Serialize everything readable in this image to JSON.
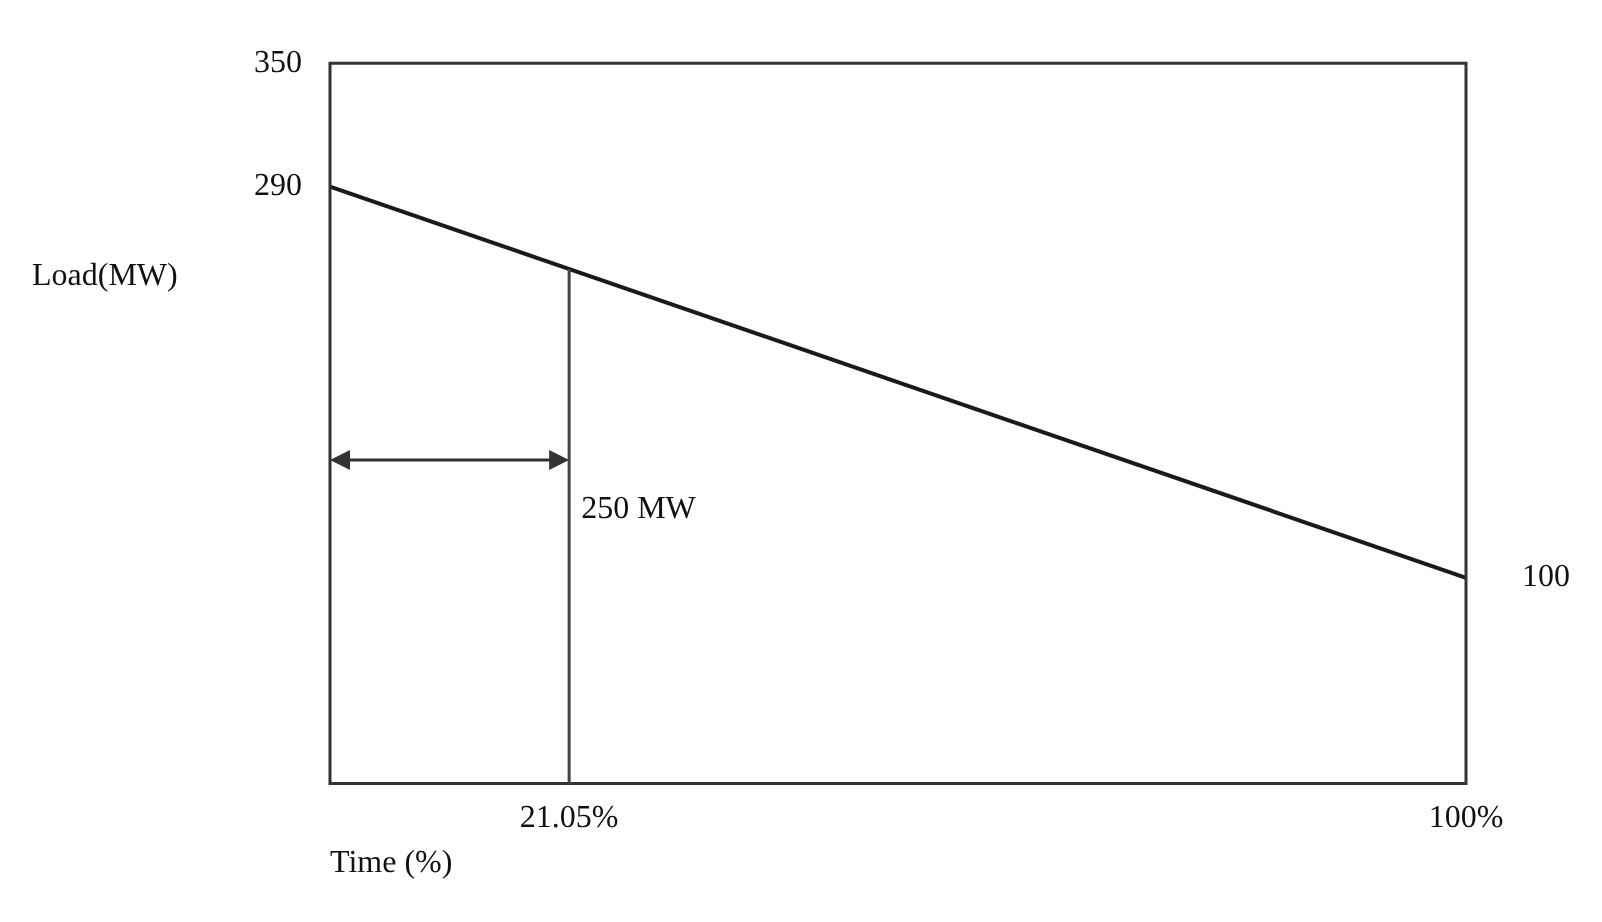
{
  "chart_data": {
    "type": "line",
    "xlabel": "Time (%)",
    "ylabel": "Load(MW)",
    "xlim": [
      0,
      100
    ],
    "xticks": [
      {
        "value": 21.05,
        "label": "21.05%"
      },
      {
        "value": 100,
        "label": "100%"
      }
    ],
    "ylim": [
      0,
      350
    ],
    "yticks": [
      {
        "value": 290,
        "label": "290"
      },
      {
        "value": 350,
        "label": "350"
      }
    ],
    "series": [
      {
        "color": "#1a1a1a",
        "x": [
          0,
          100
        ],
        "values": [
          290,
          100
        ]
      }
    ],
    "ref_lines": [
      {
        "axis": "x",
        "value": 21.05,
        "label": "250 MW",
        "color": "#444444"
      }
    ],
    "annotations": [
      {
        "text": "100",
        "x": 100,
        "y": 100
      }
    ],
    "grid": false,
    "legend": false,
    "marker": "none",
    "line_style": "solid"
  }
}
